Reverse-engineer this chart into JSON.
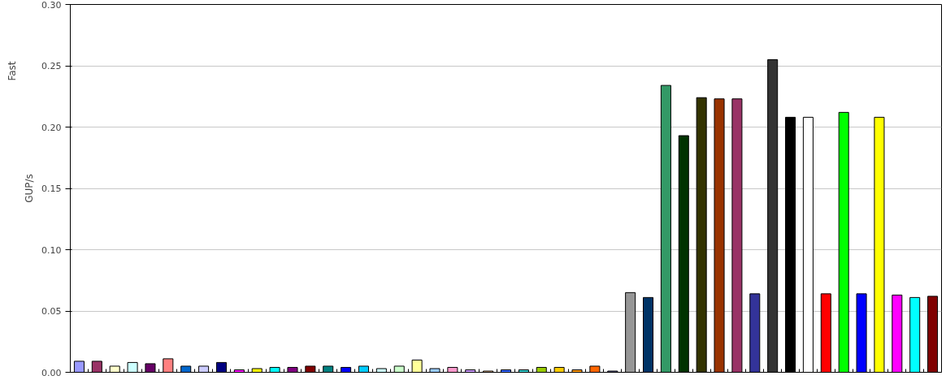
{
  "chart_data": {
    "type": "bar",
    "ylabel": "GUP/s",
    "annotations": [
      "Fast"
    ],
    "categories": [
      null,
      null,
      null,
      null,
      null,
      null,
      null,
      null,
      null,
      null,
      null,
      null,
      null,
      null,
      null,
      null,
      null,
      null,
      null,
      null,
      null,
      null,
      null,
      null,
      null,
      null,
      null,
      null,
      null,
      null,
      null,
      null,
      null,
      null,
      null,
      null,
      null,
      null,
      null,
      null,
      null,
      null,
      null,
      null,
      null,
      null,
      null,
      null,
      null
    ],
    "values": [
      0.009,
      0.009,
      0.005,
      0.008,
      0.007,
      0.011,
      0.005,
      0.005,
      0.008,
      0.002,
      0.003,
      0.004,
      0.004,
      0.005,
      0.005,
      0.004,
      0.005,
      0.003,
      0.005,
      0.01,
      0.003,
      0.004,
      0.002,
      0.001,
      0.002,
      0.002,
      0.004,
      0.004,
      0.002,
      0.005,
      0.001,
      0.065,
      0.061,
      0.234,
      0.193,
      0.224,
      0.223,
      0.223,
      0.064,
      0.255,
      0.208,
      0.208,
      0.064,
      0.212,
      0.064,
      0.208,
      0.063,
      0.061,
      0.062
    ],
    "colors": [
      "#9999ff",
      "#993366",
      "#ffffcc",
      "#ccffff",
      "#660066",
      "#ff8080",
      "#0066cc",
      "#ccccff",
      "#000080",
      "#ff00ff",
      "#ffff00",
      "#00ffff",
      "#800080",
      "#800000",
      "#008080",
      "#0000ff",
      "#00ccff",
      "#ccffff",
      "#ccffcc",
      "#ffff99",
      "#99ccff",
      "#ff99cc",
      "#cc99ff",
      "#ffcc99",
      "#3366ff",
      "#33cccc",
      "#99cc00",
      "#ffcc00",
      "#ff9900",
      "#ff6600",
      "#666699",
      "#969696",
      "#003366",
      "#339966",
      "#003300",
      "#333300",
      "#993300",
      "#993366",
      "#333399",
      "#333333",
      "#000000",
      "#ffffff",
      "#ff0000",
      "#00ff00",
      "#0000ff",
      "#ffff00",
      "#ff00ff",
      "#00ffff",
      "#800000"
    ],
    "ylim": [
      0,
      0.3
    ],
    "yticks": [
      {
        "value": 0,
        "label": "0.00"
      },
      {
        "value": 0.05,
        "label": "0.05"
      },
      {
        "value": 0.1,
        "label": "0.10"
      },
      {
        "value": 0.15,
        "label": "0.15"
      },
      {
        "value": 0.2,
        "label": "0.20"
      },
      {
        "value": 0.25,
        "label": "0.25"
      },
      {
        "value": 0.3,
        "label": "0.30"
      }
    ],
    "grid": "y",
    "tick_labels": "y"
  }
}
